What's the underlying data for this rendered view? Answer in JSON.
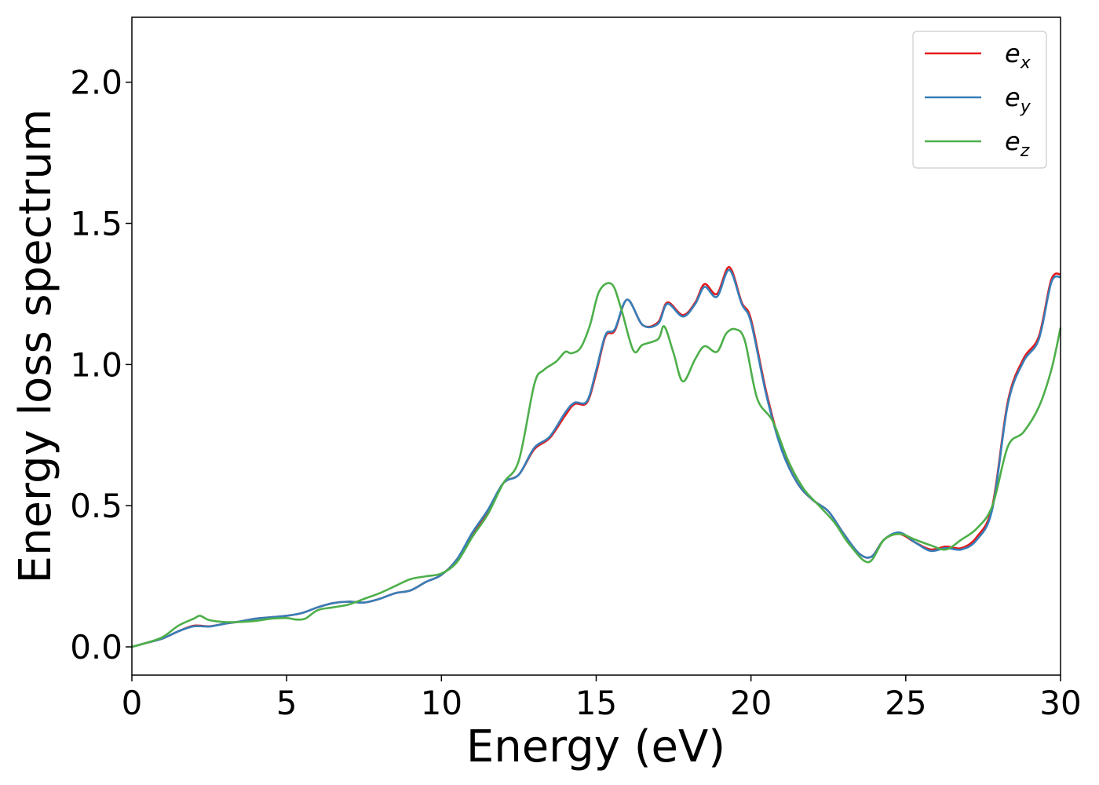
{
  "chart_data": {
    "type": "line",
    "xlabel": "Energy (eV)",
    "ylabel": "Energy loss spectrum",
    "xlim": [
      0,
      30
    ],
    "ylim": [
      -0.1,
      2.23
    ],
    "xticks": [
      0,
      5,
      10,
      15,
      20,
      25,
      30
    ],
    "xtick_labels": [
      "0",
      "5",
      "10",
      "15",
      "20",
      "25",
      "30"
    ],
    "yticks": [
      0.0,
      0.5,
      1.0,
      1.5,
      2.0
    ],
    "ytick_labels": [
      "0.0",
      "0.5",
      "1.0",
      "1.5",
      "2.0"
    ],
    "grid": false,
    "legend_position": "top-right",
    "series": [
      {
        "name": "e_x",
        "legend_base": "e",
        "legend_sub": "x",
        "color": "#e41a1c",
        "x": [
          0,
          0.5,
          1,
          1.5,
          2,
          2.5,
          3,
          3.5,
          4,
          4.5,
          5,
          5.5,
          6,
          6.5,
          7,
          7.5,
          8,
          8.5,
          9,
          9.5,
          10,
          10.5,
          11,
          11.5,
          12,
          12.5,
          13,
          13.5,
          14,
          14.3,
          14.7,
          15,
          15.3,
          15.6,
          16,
          16.5,
          17,
          17.3,
          17.8,
          18.2,
          18.5,
          18.9,
          19.3,
          19.7,
          20,
          20.5,
          21,
          21.5,
          22,
          22.5,
          23,
          23.5,
          23.9,
          24.3,
          24.8,
          25.3,
          25.8,
          26.3,
          26.8,
          27.3,
          27.8,
          28.3,
          28.8,
          29.3,
          29.7,
          30
        ],
        "y": [
          0.0,
          0.015,
          0.03,
          0.055,
          0.075,
          0.073,
          0.082,
          0.09,
          0.1,
          0.105,
          0.11,
          0.12,
          0.14,
          0.155,
          0.16,
          0.157,
          0.17,
          0.19,
          0.2,
          0.23,
          0.255,
          0.31,
          0.4,
          0.48,
          0.58,
          0.61,
          0.7,
          0.74,
          0.82,
          0.86,
          0.865,
          0.97,
          1.1,
          1.12,
          1.23,
          1.14,
          1.15,
          1.22,
          1.175,
          1.22,
          1.285,
          1.25,
          1.345,
          1.22,
          1.16,
          0.9,
          0.7,
          0.58,
          0.52,
          0.48,
          0.4,
          0.33,
          0.32,
          0.38,
          0.4,
          0.37,
          0.345,
          0.355,
          0.35,
          0.39,
          0.5,
          0.87,
          1.02,
          1.1,
          1.3,
          1.32
        ]
      },
      {
        "name": "e_y",
        "legend_base": "e",
        "legend_sub": "y",
        "color": "#377eb8",
        "x": [
          0,
          0.5,
          1,
          1.5,
          2,
          2.5,
          3,
          3.5,
          4,
          4.5,
          5,
          5.5,
          6,
          6.5,
          7,
          7.5,
          8,
          8.5,
          9,
          9.5,
          10,
          10.5,
          11,
          11.5,
          12,
          12.5,
          13,
          13.5,
          14,
          14.3,
          14.7,
          15,
          15.3,
          15.6,
          16,
          16.5,
          17,
          17.3,
          17.8,
          18.2,
          18.5,
          18.9,
          19.3,
          19.7,
          20,
          20.5,
          21,
          21.5,
          22,
          22.5,
          23,
          23.5,
          23.9,
          24.3,
          24.8,
          25.3,
          25.8,
          26.3,
          26.8,
          27.3,
          27.8,
          28.3,
          28.8,
          29.3,
          29.7,
          30
        ],
        "y": [
          0.0,
          0.015,
          0.03,
          0.055,
          0.073,
          0.072,
          0.082,
          0.09,
          0.1,
          0.105,
          0.11,
          0.12,
          0.14,
          0.155,
          0.16,
          0.157,
          0.17,
          0.19,
          0.2,
          0.23,
          0.255,
          0.31,
          0.405,
          0.485,
          0.58,
          0.61,
          0.705,
          0.745,
          0.83,
          0.865,
          0.87,
          0.98,
          1.105,
          1.125,
          1.23,
          1.14,
          1.145,
          1.215,
          1.17,
          1.215,
          1.275,
          1.24,
          1.335,
          1.215,
          1.15,
          0.89,
          0.695,
          0.58,
          0.52,
          0.48,
          0.4,
          0.33,
          0.32,
          0.38,
          0.405,
          0.37,
          0.34,
          0.35,
          0.345,
          0.38,
          0.49,
          0.86,
          1.01,
          1.09,
          1.29,
          1.31
        ]
      },
      {
        "name": "e_z",
        "legend_base": "e",
        "legend_sub": "z",
        "color": "#4daf4a",
        "x": [
          0,
          0.5,
          1,
          1.5,
          2,
          2.2,
          2.5,
          3,
          3.5,
          4,
          4.5,
          5,
          5.3,
          5.6,
          6,
          6.5,
          7,
          7.5,
          8,
          8.5,
          9,
          9.5,
          10,
          10.5,
          11,
          11.5,
          12,
          12.5,
          13,
          13.3,
          13.7,
          14,
          14.2,
          14.5,
          14.8,
          15.1,
          15.5,
          15.8,
          16.2,
          16.5,
          17,
          17.2,
          17.5,
          17.8,
          18.2,
          18.5,
          18.9,
          19.2,
          19.5,
          19.8,
          20.2,
          20.7,
          21.2,
          21.7,
          22.2,
          22.7,
          23.2,
          23.8,
          24.3,
          24.8,
          25.3,
          25.8,
          26.3,
          26.8,
          27.3,
          27.8,
          28.3,
          28.8,
          29.3,
          29.7,
          30
        ],
        "y": [
          0.0,
          0.015,
          0.035,
          0.075,
          0.1,
          0.11,
          0.095,
          0.088,
          0.088,
          0.092,
          0.1,
          0.102,
          0.097,
          0.1,
          0.13,
          0.14,
          0.15,
          0.17,
          0.19,
          0.215,
          0.24,
          0.25,
          0.26,
          0.3,
          0.39,
          0.47,
          0.58,
          0.66,
          0.93,
          0.98,
          1.01,
          1.045,
          1.04,
          1.06,
          1.14,
          1.26,
          1.285,
          1.2,
          1.05,
          1.07,
          1.09,
          1.135,
          1.04,
          0.94,
          1.02,
          1.065,
          1.045,
          1.11,
          1.125,
          1.085,
          0.88,
          0.8,
          0.66,
          0.56,
          0.5,
          0.44,
          0.36,
          0.3,
          0.38,
          0.4,
          0.38,
          0.36,
          0.345,
          0.38,
          0.42,
          0.5,
          0.71,
          0.76,
          0.85,
          0.98,
          1.13
        ]
      }
    ]
  }
}
